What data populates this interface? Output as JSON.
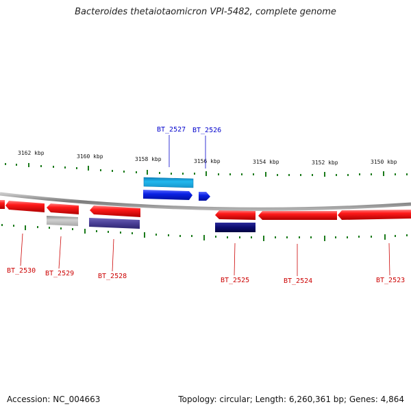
{
  "title": "Bacteroides thetaiotaomicron VPI-5482, complete genome",
  "footer": {
    "accession": "Accession: NC_004663",
    "summary": "Topology: circular; Length: 6,260,361 bp; Genes: 4,864"
  },
  "colors": {
    "forward_strand": "#ff1a1a",
    "highlight_blue": "#0b22e6",
    "light_blue": "#22b8ee",
    "dark_navy": "#0a0a6e",
    "indigo": "#4a3f96",
    "gray": "#b9b9b9",
    "tick": "#1a7a1a",
    "label_red": "#cc0000",
    "label_blue": "#0000cc"
  },
  "ruler_labels": [
    "3162 kbp",
    "3160 kbp",
    "3158 kbp",
    "3156 kbp",
    "3154 kbp",
    "3152 kbp",
    "3150 kbp"
  ],
  "gene_labels": [
    {
      "name": "BT_2527",
      "color": "blue"
    },
    {
      "name": "BT_2526",
      "color": "blue"
    },
    {
      "name": "BT_2530",
      "color": "red"
    },
    {
      "name": "BT_2529",
      "color": "red"
    },
    {
      "name": "BT_2528",
      "color": "red"
    },
    {
      "name": "BT_2525",
      "color": "red"
    },
    {
      "name": "BT_2524",
      "color": "red"
    },
    {
      "name": "BT_2523",
      "color": "red"
    }
  ]
}
